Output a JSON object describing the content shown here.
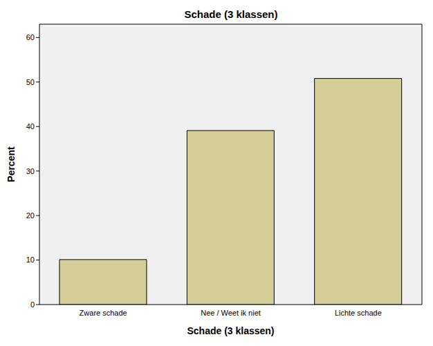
{
  "chart_data": {
    "type": "bar",
    "title": "Schade (3 klassen)",
    "x_label": "Schade (3 klassen)",
    "y_label": "Percent",
    "categories": [
      "Zware schade",
      "Nee / Weet ik niet",
      "Lichte schade"
    ],
    "values": [
      10.1,
      39.1,
      50.8
    ],
    "color": "#d3ce97",
    "ylim": [
      0,
      63
    ],
    "yticks": [
      0,
      10,
      20,
      30,
      40,
      50,
      60
    ],
    "grid": false
  }
}
